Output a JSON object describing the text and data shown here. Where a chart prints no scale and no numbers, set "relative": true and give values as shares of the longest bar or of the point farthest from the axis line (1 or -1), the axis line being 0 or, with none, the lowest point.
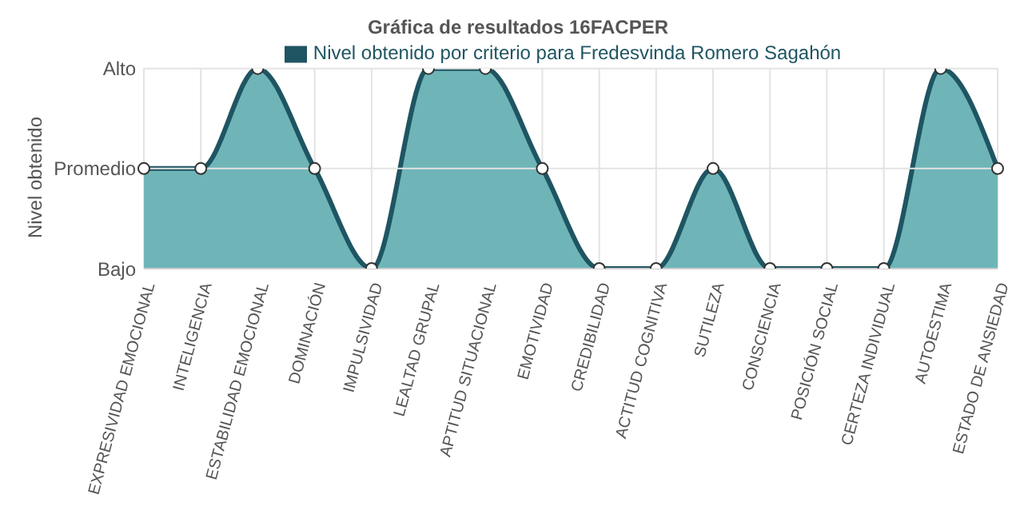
{
  "chart_data": {
    "type": "area",
    "title": "Gráfica de resultados 16FACPER",
    "ylabel": "Nivel obtenido",
    "relative": true,
    "categories": [
      "EXPRESIVIDAD EMOCIONAL",
      "INTELIGENCIA",
      "ESTABILIDAD EMOCIONAL",
      "DOMINACIÓN",
      "IMPULSIVIDAD",
      "LEALTAD GRUPAL",
      "APTITUD SITUACIONAL",
      "EMOTIVIDAD",
      "CREDIBILIDAD",
      "ACTITUD COGNITIVA",
      "SUTILEZA",
      "CONSCIENCIA",
      "POSICIÓN SOCIAL",
      "CERTEZA INDIVIDUAL",
      "AUTOESTIMA",
      "ESTADO DE ANSIEDAD"
    ],
    "series": [
      {
        "name": "Nivel obtenido por criterio para Fredesvinda Romero Sagahón",
        "color": "#1f5562",
        "values": [
          0.5,
          0.5,
          1,
          0.5,
          0,
          1,
          1,
          0.5,
          0,
          0,
          0.5,
          0,
          0,
          0,
          1,
          0.5
        ]
      }
    ],
    "annotations": [
      "Bajo",
      "Promedio",
      "Alto"
    ],
    "grid": "x",
    "legend": "top",
    "marker": "circle"
  }
}
